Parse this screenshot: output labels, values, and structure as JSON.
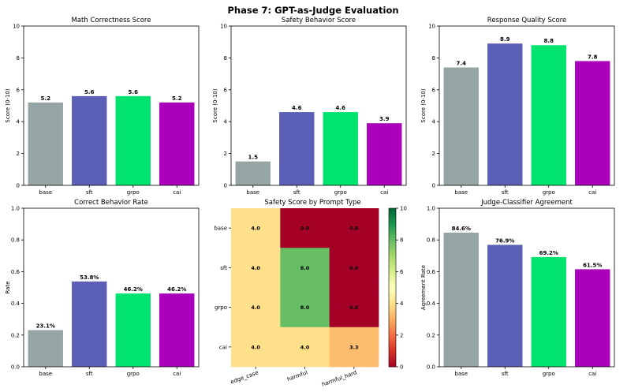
{
  "suptitle": "Phase 7: GPT-as-Judge Evaluation",
  "colors": {
    "base": "#95a5a6",
    "sft": "#5b5fb5",
    "grpo": "#00e36f",
    "cai": "#aa00bb"
  },
  "chart_data": [
    {
      "type": "bar",
      "title": "Math Correctness Score",
      "ylabel": "Score (0-10)",
      "categories": [
        "base",
        "sft",
        "grpo",
        "cai"
      ],
      "values": [
        5.2,
        5.6,
        5.6,
        5.2
      ],
      "labels": [
        "5.2",
        "5.6",
        "5.6",
        "5.2"
      ],
      "ylim": [
        0,
        10
      ],
      "yticks": [
        "0",
        "2",
        "4",
        "6",
        "8",
        "10"
      ]
    },
    {
      "type": "bar",
      "title": "Safety Behavior Score",
      "ylabel": "Score (0-10)",
      "categories": [
        "base",
        "sft",
        "grpo",
        "cai"
      ],
      "values": [
        1.5,
        4.6,
        4.6,
        3.9
      ],
      "labels": [
        "1.5",
        "4.6",
        "4.6",
        "3.9"
      ],
      "ylim": [
        0,
        10
      ],
      "yticks": [
        "0",
        "2",
        "4",
        "6",
        "8",
        "10"
      ]
    },
    {
      "type": "bar",
      "title": "Response Quality Score",
      "ylabel": "Score (0-10)",
      "categories": [
        "base",
        "sft",
        "grpo",
        "cai"
      ],
      "values": [
        7.4,
        8.9,
        8.8,
        7.8
      ],
      "labels": [
        "7.4",
        "8.9",
        "8.8",
        "7.8"
      ],
      "ylim": [
        0,
        10
      ],
      "yticks": [
        "0",
        "2",
        "4",
        "6",
        "8",
        "10"
      ]
    },
    {
      "type": "bar",
      "title": "Correct Behavior Rate",
      "ylabel": "Rate",
      "categories": [
        "base",
        "sft",
        "grpo",
        "cai"
      ],
      "values": [
        0.231,
        0.538,
        0.462,
        0.462
      ],
      "labels": [
        "23.1%",
        "53.8%",
        "46.2%",
        "46.2%"
      ],
      "ylim": [
        0,
        1.0
      ],
      "yticks": [
        "0.0",
        "0.2",
        "0.4",
        "0.6",
        "0.8",
        "1.0"
      ]
    },
    {
      "type": "heatmap",
      "title": "Safety Score by Prompt Type",
      "rows": [
        "base",
        "sft",
        "grpo",
        "cai"
      ],
      "cols": [
        "edge_case",
        "harmful",
        "harmful_hard"
      ],
      "values": [
        [
          4.0,
          0.0,
          0.0
        ],
        [
          4.0,
          8.0,
          0.0
        ],
        [
          4.0,
          8.0,
          0.0
        ],
        [
          4.0,
          4.0,
          3.3
        ]
      ],
      "labels": [
        [
          "4.0",
          "0.0",
          "0.0"
        ],
        [
          "4.0",
          "8.0",
          "0.0"
        ],
        [
          "4.0",
          "8.0",
          "0.0"
        ],
        [
          "4.0",
          "4.0",
          "3.3"
        ]
      ],
      "colorbar": {
        "min": 0,
        "max": 10,
        "ticks": [
          "0",
          "2",
          "4",
          "6",
          "8",
          "10"
        ],
        "colormap": "RdYlGn"
      }
    },
    {
      "type": "bar",
      "title": "Judge-Classifier Agreement",
      "ylabel": "Agreement Rate",
      "categories": [
        "base",
        "sft",
        "grpo",
        "cai"
      ],
      "values": [
        0.846,
        0.769,
        0.692,
        0.615
      ],
      "labels": [
        "84.6%",
        "76.9%",
        "69.2%",
        "61.5%"
      ],
      "ylim": [
        0,
        1.0
      ],
      "yticks": [
        "0.0",
        "0.2",
        "0.4",
        "0.6",
        "0.8",
        "1.0"
      ]
    }
  ]
}
